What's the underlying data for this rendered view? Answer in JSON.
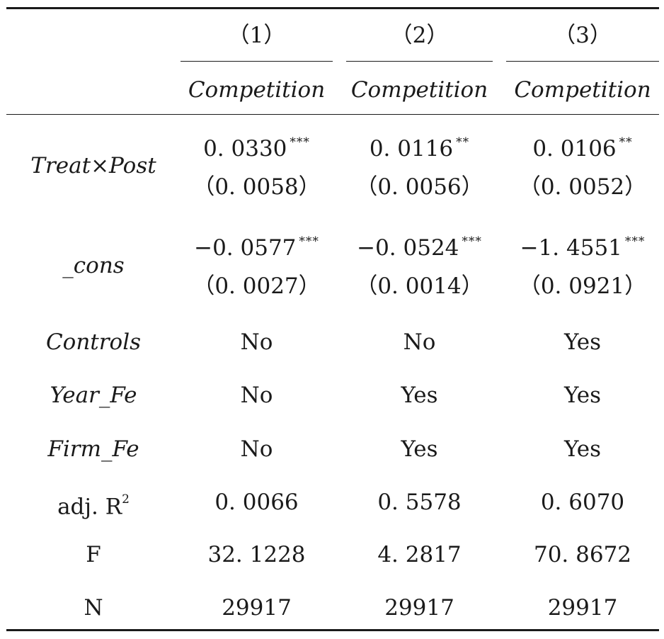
{
  "header": {
    "col_numbers": [
      "（1）",
      "（2）",
      "（3）"
    ],
    "dep_vars": [
      "Competition",
      "Competition",
      "Competition"
    ]
  },
  "rows": {
    "treat_post": {
      "label": "Treat×Post",
      "coefs": [
        "0. 0330",
        "0. 0116",
        "0. 0106"
      ],
      "stars": [
        "***",
        "**",
        "**"
      ],
      "ses": [
        "（0. 0058）",
        "（0. 0056）",
        "（0. 0052）"
      ]
    },
    "cons": {
      "label": "_cons",
      "coefs": [
        "−0. 0577",
        "−0. 0524",
        "−1. 4551"
      ],
      "stars": [
        "***",
        "***",
        "***"
      ],
      "ses": [
        "（0. 0027）",
        "（0. 0014）",
        "（0. 0921）"
      ]
    },
    "controls": {
      "label": "Controls",
      "values": [
        "No",
        "No",
        "Yes"
      ]
    },
    "year_fe": {
      "label": "Year_Fe",
      "values": [
        "No",
        "Yes",
        "Yes"
      ]
    },
    "firm_fe": {
      "label": "Firm_Fe",
      "values": [
        "No",
        "Yes",
        "Yes"
      ]
    },
    "adj_r2": {
      "label": "adj. R",
      "label_sup": "2",
      "values": [
        "0. 0066",
        "0. 5578",
        "0. 6070"
      ]
    },
    "f": {
      "label": "F",
      "values": [
        "32. 1228",
        "4. 2817",
        "70. 8672"
      ]
    },
    "n": {
      "label": "N",
      "values": [
        "29917",
        "29917",
        "29917"
      ]
    }
  }
}
